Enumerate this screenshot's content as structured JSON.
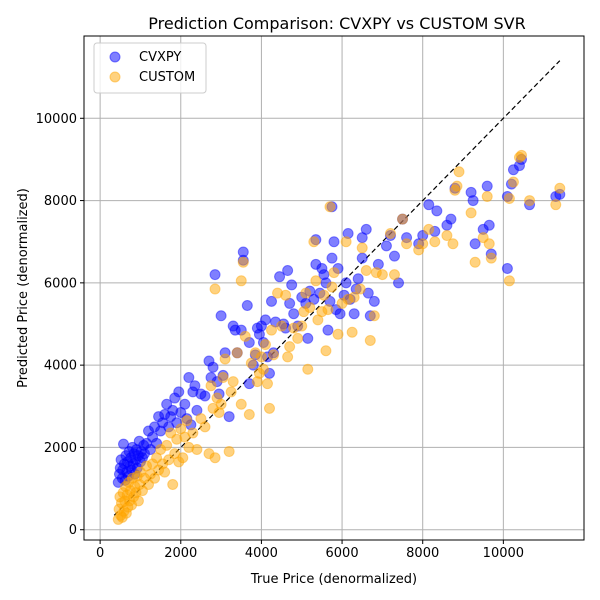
{
  "chart_data": {
    "type": "scatter",
    "title": "Prediction Comparison: CVXPY vs CUSTOM SVR",
    "xlabel": "True Price (denormalized)",
    "ylabel": "Predicted Price (denormalized)",
    "xlim": [
      -400,
      12000
    ],
    "ylim": [
      -250,
      12000
    ],
    "xticks": [
      0,
      2000,
      4000,
      6000,
      8000,
      10000
    ],
    "yticks": [
      0,
      2000,
      4000,
      6000,
      8000,
      10000
    ],
    "grid": true,
    "legend_position": "top-left",
    "reference_line": {
      "style": "dashed",
      "color": "#000000",
      "from": [
        350,
        350
      ],
      "to": [
        11400,
        11400
      ]
    },
    "series": [
      {
        "name": "CVXPY",
        "color": "#0000ff",
        "alpha": 0.5,
        "points": [
          [
            450,
            1150
          ],
          [
            480,
            1350
          ],
          [
            500,
            1500
          ],
          [
            520,
            1700
          ],
          [
            550,
            1250
          ],
          [
            560,
            1450
          ],
          [
            580,
            2080
          ],
          [
            600,
            1600
          ],
          [
            620,
            1200
          ],
          [
            640,
            1800
          ],
          [
            660,
            1400
          ],
          [
            680,
            1650
          ],
          [
            700,
            1300
          ],
          [
            720,
            1900
          ],
          [
            740,
            1550
          ],
          [
            760,
            1750
          ],
          [
            780,
            1450
          ],
          [
            800,
            2000
          ],
          [
            820,
            1600
          ],
          [
            840,
            1850
          ],
          [
            860,
            1350
          ],
          [
            880,
            1700
          ],
          [
            900,
            1950
          ],
          [
            920,
            1500
          ],
          [
            950,
            1800
          ],
          [
            970,
            2150
          ],
          [
            1000,
            1650
          ],
          [
            1020,
            1900
          ],
          [
            1050,
            1750
          ],
          [
            1080,
            2050
          ],
          [
            1100,
            1850
          ],
          [
            1150,
            2100
          ],
          [
            1200,
            2400
          ],
          [
            1250,
            1950
          ],
          [
            1300,
            2250
          ],
          [
            1350,
            2500
          ],
          [
            1400,
            2100
          ],
          [
            1450,
            2750
          ],
          [
            1500,
            2400
          ],
          [
            1550,
            2600
          ],
          [
            1600,
            2800
          ],
          [
            1650,
            3050
          ],
          [
            1700,
            2500
          ],
          [
            1750,
            2750
          ],
          [
            1800,
            2900
          ],
          [
            1850,
            3200
          ],
          [
            1900,
            2600
          ],
          [
            1950,
            3350
          ],
          [
            2000,
            2850
          ],
          [
            2100,
            3050
          ],
          [
            2150,
            2700
          ],
          [
            2200,
            3700
          ],
          [
            2250,
            2550
          ],
          [
            2300,
            3350
          ],
          [
            2350,
            3500
          ],
          [
            2400,
            2900
          ],
          [
            2500,
            3300
          ],
          [
            2600,
            3250
          ],
          [
            2700,
            4100
          ],
          [
            2750,
            3700
          ],
          [
            2800,
            3950
          ],
          [
            2850,
            6200
          ],
          [
            2900,
            3600
          ],
          [
            2950,
            3300
          ],
          [
            3000,
            5200
          ],
          [
            3050,
            3750
          ],
          [
            3100,
            4300
          ],
          [
            3200,
            2750
          ],
          [
            3300,
            4950
          ],
          [
            3350,
            4850
          ],
          [
            3400,
            4300
          ],
          [
            3500,
            4850
          ],
          [
            3550,
            6550
          ],
          [
            3550,
            6750
          ],
          [
            3650,
            5450
          ],
          [
            3700,
            3550
          ],
          [
            3700,
            4550
          ],
          [
            3800,
            4000
          ],
          [
            3850,
            4250
          ],
          [
            3900,
            4900
          ],
          [
            3950,
            4750
          ],
          [
            4000,
            4950
          ],
          [
            4050,
            4550
          ],
          [
            4100,
            5100
          ],
          [
            4150,
            4200
          ],
          [
            4200,
            3800
          ],
          [
            4250,
            5550
          ],
          [
            4300,
            4300
          ],
          [
            4350,
            5050
          ],
          [
            4450,
            6150
          ],
          [
            4550,
            5000
          ],
          [
            4600,
            4900
          ],
          [
            4650,
            6300
          ],
          [
            4700,
            5500
          ],
          [
            4750,
            5950
          ],
          [
            4800,
            5250
          ],
          [
            4900,
            4950
          ],
          [
            5000,
            5650
          ],
          [
            5100,
            5500
          ],
          [
            5150,
            4650
          ],
          [
            5200,
            5800
          ],
          [
            5300,
            5600
          ],
          [
            5350,
            6450
          ],
          [
            5350,
            7050
          ],
          [
            5450,
            5750
          ],
          [
            5500,
            6350
          ],
          [
            5550,
            6200
          ],
          [
            5600,
            6000
          ],
          [
            5650,
            4850
          ],
          [
            5700,
            5550
          ],
          [
            5750,
            7850
          ],
          [
            5750,
            6600
          ],
          [
            5800,
            7000
          ],
          [
            5850,
            5350
          ],
          [
            5900,
            6350
          ],
          [
            5950,
            5250
          ],
          [
            6050,
            5700
          ],
          [
            6100,
            6000
          ],
          [
            6150,
            7200
          ],
          [
            6200,
            5600
          ],
          [
            6300,
            5250
          ],
          [
            6350,
            5850
          ],
          [
            6400,
            6100
          ],
          [
            6500,
            7100
          ],
          [
            6500,
            6600
          ],
          [
            6600,
            7300
          ],
          [
            6650,
            5750
          ],
          [
            6700,
            5200
          ],
          [
            6800,
            5550
          ],
          [
            6900,
            6450
          ],
          [
            7100,
            6900
          ],
          [
            7200,
            7150
          ],
          [
            7300,
            6650
          ],
          [
            7400,
            6000
          ],
          [
            7500,
            7550
          ],
          [
            7600,
            7100
          ],
          [
            7900,
            6950
          ],
          [
            8000,
            7150
          ],
          [
            8150,
            7900
          ],
          [
            8300,
            7250
          ],
          [
            8350,
            7750
          ],
          [
            8600,
            7400
          ],
          [
            8700,
            7550
          ],
          [
            8800,
            8300
          ],
          [
            9200,
            8200
          ],
          [
            9250,
            8000
          ],
          [
            9300,
            6950
          ],
          [
            9500,
            7300
          ],
          [
            9600,
            8350
          ],
          [
            9650,
            7400
          ],
          [
            9700,
            6700
          ],
          [
            10100,
            8100
          ],
          [
            10100,
            6350
          ],
          [
            10200,
            8400
          ],
          [
            10250,
            8750
          ],
          [
            10400,
            8850
          ],
          [
            10450,
            9000
          ],
          [
            10650,
            7900
          ],
          [
            11300,
            8100
          ],
          [
            11400,
            8150
          ]
        ]
      },
      {
        "name": "CUSTOM",
        "color": "#ffa500",
        "alpha": 0.5,
        "points": [
          [
            450,
            250
          ],
          [
            470,
            500
          ],
          [
            490,
            800
          ],
          [
            510,
            350
          ],
          [
            530,
            650
          ],
          [
            550,
            300
          ],
          [
            570,
            900
          ],
          [
            590,
            450
          ],
          [
            610,
            700
          ],
          [
            630,
            1050
          ],
          [
            650,
            400
          ],
          [
            670,
            850
          ],
          [
            690,
            550
          ],
          [
            710,
            1150
          ],
          [
            730,
            700
          ],
          [
            750,
            950
          ],
          [
            780,
            600
          ],
          [
            800,
            1250
          ],
          [
            830,
            800
          ],
          [
            860,
            1050
          ],
          [
            890,
            900
          ],
          [
            920,
            1300
          ],
          [
            950,
            700
          ],
          [
            980,
            1100
          ],
          [
            1000,
            1400
          ],
          [
            1050,
            950
          ],
          [
            1100,
            1250
          ],
          [
            1150,
            1550
          ],
          [
            1200,
            1100
          ],
          [
            1250,
            1350
          ],
          [
            1300,
            1600
          ],
          [
            1350,
            1250
          ],
          [
            1400,
            1750
          ],
          [
            1450,
            1450
          ],
          [
            1500,
            1950
          ],
          [
            1550,
            1600
          ],
          [
            1600,
            1400
          ],
          [
            1650,
            2050
          ],
          [
            1700,
            1700
          ],
          [
            1750,
            2350
          ],
          [
            1800,
            1100
          ],
          [
            1850,
            1850
          ],
          [
            1900,
            2200
          ],
          [
            1950,
            1650
          ],
          [
            2000,
            2450
          ],
          [
            2050,
            1750
          ],
          [
            2100,
            2250
          ],
          [
            2150,
            2650
          ],
          [
            2200,
            2000
          ],
          [
            2300,
            2350
          ],
          [
            2400,
            1950
          ],
          [
            2500,
            2700
          ],
          [
            2600,
            2500
          ],
          [
            2700,
            1850
          ],
          [
            2750,
            3500
          ],
          [
            2800,
            2950
          ],
          [
            2850,
            1750
          ],
          [
            2850,
            5850
          ],
          [
            2900,
            3200
          ],
          [
            2950,
            2850
          ],
          [
            3000,
            3050
          ],
          [
            3050,
            3700
          ],
          [
            3100,
            4150
          ],
          [
            3200,
            1900
          ],
          [
            3250,
            3350
          ],
          [
            3300,
            3600
          ],
          [
            3400,
            4300
          ],
          [
            3500,
            3050
          ],
          [
            3500,
            6050
          ],
          [
            3550,
            6500
          ],
          [
            3600,
            4700
          ],
          [
            3700,
            2800
          ],
          [
            3750,
            4050
          ],
          [
            3850,
            4300
          ],
          [
            3900,
            3600
          ],
          [
            3950,
            3800
          ],
          [
            4000,
            4200
          ],
          [
            4050,
            3900
          ],
          [
            4100,
            4500
          ],
          [
            4150,
            3550
          ],
          [
            4200,
            2950
          ],
          [
            4250,
            4850
          ],
          [
            4300,
            4250
          ],
          [
            4400,
            5750
          ],
          [
            4500,
            4950
          ],
          [
            4600,
            5700
          ],
          [
            4650,
            4200
          ],
          [
            4700,
            4450
          ],
          [
            4800,
            4900
          ],
          [
            4900,
            4650
          ],
          [
            5000,
            4950
          ],
          [
            5050,
            5300
          ],
          [
            5100,
            5750
          ],
          [
            5150,
            3900
          ],
          [
            5200,
            5400
          ],
          [
            5300,
            7000
          ],
          [
            5350,
            6050
          ],
          [
            5400,
            5100
          ],
          [
            5500,
            5300
          ],
          [
            5550,
            5700
          ],
          [
            5600,
            4350
          ],
          [
            5650,
            5350
          ],
          [
            5700,
            7850
          ],
          [
            5750,
            5900
          ],
          [
            5800,
            6250
          ],
          [
            5900,
            4750
          ],
          [
            6000,
            5500
          ],
          [
            6100,
            7000
          ],
          [
            6150,
            5600
          ],
          [
            6250,
            4800
          ],
          [
            6300,
            5650
          ],
          [
            6450,
            5850
          ],
          [
            6500,
            6850
          ],
          [
            6600,
            6300
          ],
          [
            6700,
            4600
          ],
          [
            6800,
            5200
          ],
          [
            6850,
            6250
          ],
          [
            7000,
            6200
          ],
          [
            7200,
            7200
          ],
          [
            7300,
            6200
          ],
          [
            7500,
            7550
          ],
          [
            7600,
            6950
          ],
          [
            7900,
            6800
          ],
          [
            8000,
            6950
          ],
          [
            8150,
            7300
          ],
          [
            8300,
            7000
          ],
          [
            8600,
            7150
          ],
          [
            8750,
            6950
          ],
          [
            8800,
            8250
          ],
          [
            8850,
            8350
          ],
          [
            8900,
            8700
          ],
          [
            9200,
            7700
          ],
          [
            9300,
            6500
          ],
          [
            9500,
            7100
          ],
          [
            9600,
            8100
          ],
          [
            9650,
            6950
          ],
          [
            9700,
            6600
          ],
          [
            10150,
            8050
          ],
          [
            10150,
            6050
          ],
          [
            10250,
            8450
          ],
          [
            10400,
            9050
          ],
          [
            10450,
            9100
          ],
          [
            10650,
            8000
          ],
          [
            11300,
            7900
          ],
          [
            11400,
            8300
          ]
        ]
      }
    ]
  }
}
